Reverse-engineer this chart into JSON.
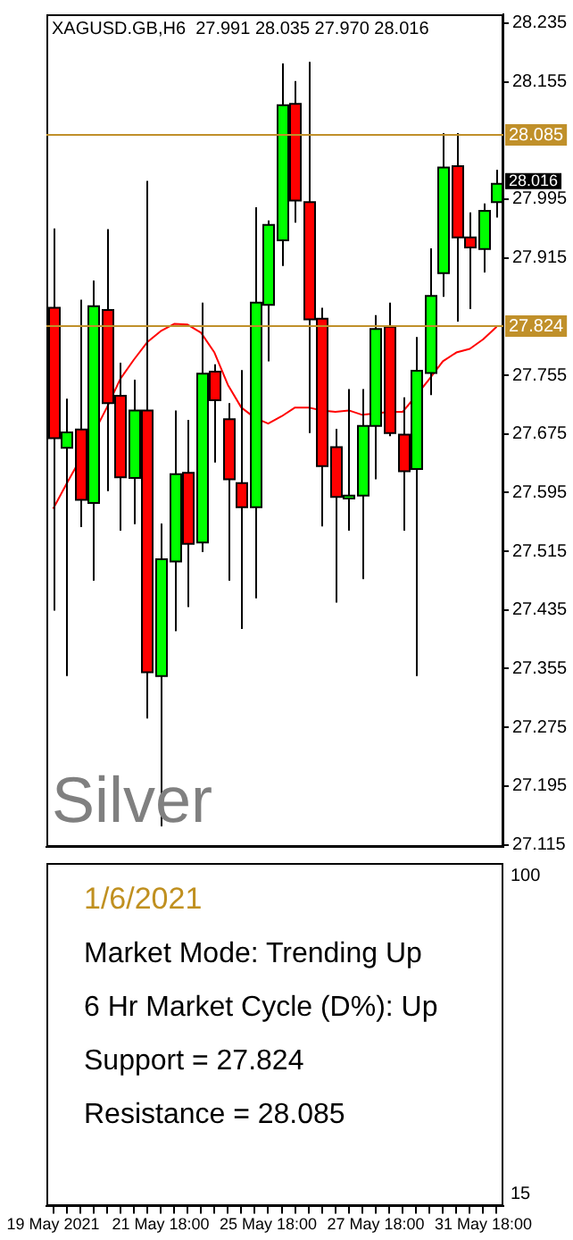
{
  "chart_data": [
    {
      "type": "candlestick",
      "title": "XAGUSD.GB,H6  27.991 28.035 27.970 28.016",
      "categories": [
        null,
        null,
        null,
        null,
        null,
        null,
        null,
        null,
        null,
        null,
        null,
        null,
        null,
        null,
        null,
        null,
        null,
        null,
        null,
        null,
        null,
        null,
        null,
        null,
        null,
        null,
        null,
        null,
        null,
        null,
        null,
        null,
        null,
        null
      ],
      "ohlc": [
        [
          27.847,
          27.955,
          27.434,
          27.669
        ],
        [
          27.656,
          27.723,
          27.345,
          27.677
        ],
        [
          27.681,
          27.858,
          27.548,
          27.585
        ],
        [
          27.581,
          27.884,
          27.475,
          27.849
        ],
        [
          27.844,
          27.954,
          27.597,
          27.717
        ],
        [
          27.727,
          27.772,
          27.543,
          27.616
        ],
        [
          27.615,
          27.749,
          27.552,
          27.707
        ],
        [
          27.707,
          28.02,
          27.287,
          27.35
        ],
        [
          27.345,
          27.553,
          27.14,
          27.504
        ],
        [
          27.501,
          27.707,
          27.406,
          27.62
        ],
        [
          27.622,
          27.694,
          27.439,
          27.525
        ],
        [
          27.527,
          27.854,
          27.514,
          27.757
        ],
        [
          27.76,
          27.77,
          27.636,
          27.721
        ],
        [
          27.695,
          27.717,
          27.475,
          27.613
        ],
        [
          27.608,
          27.762,
          27.409,
          27.575
        ],
        [
          27.575,
          27.984,
          27.451,
          27.854
        ],
        [
          27.851,
          27.966,
          27.774,
          27.96
        ],
        [
          27.939,
          28.18,
          27.904,
          28.123
        ],
        [
          28.125,
          28.156,
          27.963,
          27.993
        ],
        [
          27.991,
          28.182,
          27.676,
          27.831
        ],
        [
          27.832,
          27.847,
          27.549,
          27.631
        ],
        [
          27.657,
          27.682,
          27.445,
          27.589
        ],
        [
          27.587,
          27.736,
          27.543,
          27.591
        ],
        [
          27.591,
          27.736,
          27.477,
          27.686
        ],
        [
          27.686,
          27.837,
          27.613,
          27.818
        ],
        [
          27.821,
          27.854,
          27.672,
          27.676
        ],
        [
          27.674,
          27.725,
          27.543,
          27.624
        ],
        [
          27.627,
          27.807,
          27.345,
          27.761
        ],
        [
          27.758,
          27.928,
          27.728,
          27.863
        ],
        [
          27.894,
          28.085,
          27.862,
          28.038
        ],
        [
          28.04,
          28.085,
          27.828,
          27.943
        ],
        [
          27.943,
          27.977,
          27.845,
          27.929
        ],
        [
          27.927,
          27.989,
          27.895,
          27.979
        ],
        [
          27.991,
          28.035,
          27.97,
          28.016
        ]
      ],
      "colors": [
        "#ff0000",
        "#00ff00",
        "#ff0000",
        "#00ff00",
        "#ff0000",
        "#ff0000",
        "#00ff00",
        "#ff0000",
        "#00ff00",
        "#00ff00",
        "#ff0000",
        "#00ff00",
        "#ff0000",
        "#ff0000",
        "#ff0000",
        "#00ff00",
        "#00ff00",
        "#00ff00",
        "#ff0000",
        "#ff0000",
        "#ff0000",
        "#ff0000",
        "#00ff00",
        "#00ff00",
        "#00ff00",
        "#ff0000",
        "#ff0000",
        "#00ff00",
        "#00ff00",
        "#00ff00",
        "#ff0000",
        "#ff0000",
        "#00ff00",
        "#00ff00"
      ],
      "series": [
        {
          "type": "line",
          "color": "#ff0000",
          "values": [
            27.573,
            27.607,
            27.64,
            null,
            27.711,
            27.75,
            27.776,
            27.8,
            27.815,
            27.825,
            27.824,
            27.813,
            27.786,
            27.742,
            27.711,
            27.697,
            27.689,
            27.699,
            27.711,
            27.711,
            27.707,
            27.705,
            27.707,
            27.701,
            27.703,
            27.705,
            27.705,
            27.727,
            27.75,
            27.774,
            27.786,
            27.791,
            27.804,
            27.821
          ]
        }
      ],
      "ylim": [
        27.112,
        28.247
      ],
      "yticks": [
        28.235,
        28.155,
        27.995,
        27.915,
        27.755,
        27.675,
        27.595,
        27.515,
        27.435,
        27.355,
        27.275,
        27.195,
        27.115
      ],
      "ref_lines": [
        {
          "axis": "y",
          "value": 28.085,
          "label": "28.085",
          "color": "#c0902a"
        },
        {
          "axis": "y",
          "value": 27.824,
          "label": "27.824",
          "color": "#c0902a"
        }
      ],
      "annotations": [
        "Silver",
        "28.016"
      ],
      "grid": false,
      "legend": false,
      "tick_labels": "y"
    },
    {
      "type": "other",
      "title": "1/6/2021",
      "categories": [
        "19 May 2021",
        null,
        null,
        null,
        null,
        null,
        null,
        null,
        "21 May 18:00",
        null,
        null,
        null,
        null,
        null,
        null,
        null,
        "25 May 18:00",
        null,
        null,
        null,
        null,
        null,
        null,
        null,
        "27 May 18:00",
        null,
        null,
        null,
        null,
        null,
        null,
        null,
        "31 May 18:00",
        null
      ],
      "annotations": [
        "Market Mode: Trending Up",
        "6 Hr Market Cycle (D%): Up",
        "Support = 27.824",
        "Resistance = 28.085",
        "100",
        "15"
      ]
    }
  ]
}
